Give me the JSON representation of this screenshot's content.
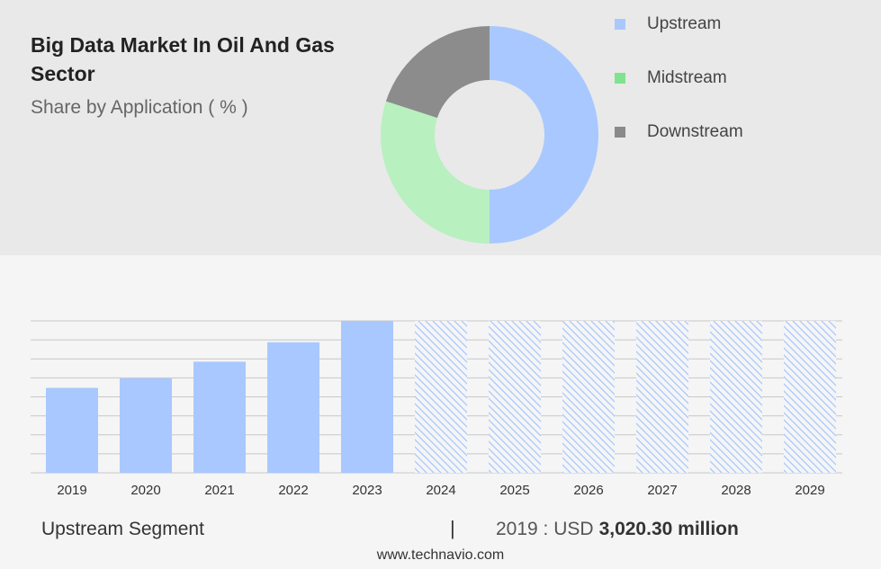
{
  "header": {
    "title": "Big Data Market In Oil And Gas Sector",
    "subtitle": "Share by Application ( % )"
  },
  "legend": [
    {
      "label": "Upstream",
      "color": "#a9c8ff"
    },
    {
      "label": "Midstream",
      "color": "#7fe38f"
    },
    {
      "label": "Downstream",
      "color": "#8a8a8a"
    }
  ],
  "chart_data": [
    {
      "type": "pie",
      "variant": "donut",
      "title": "Share by Application ( % )",
      "labels": [
        "Upstream",
        "Midstream",
        "Downstream"
      ],
      "values": [
        50,
        30,
        20
      ],
      "colors": [
        "#a9c8ff",
        "#b8f0c0",
        "#8c8c8c"
      ],
      "legend_position": "right"
    },
    {
      "type": "bar",
      "categories": [
        "2019",
        "2020",
        "2021",
        "2022",
        "2023",
        "2024",
        "2025",
        "2026",
        "2027",
        "2028",
        "2029"
      ],
      "values": [
        3020.3,
        3360,
        3950,
        4640,
        5400,
        null,
        null,
        null,
        null,
        null,
        null
      ],
      "forecast_categories": [
        "2024",
        "2025",
        "2026",
        "2027",
        "2028",
        "2029"
      ],
      "ylim": [
        0,
        5400
      ],
      "grid": true,
      "bar_color": "#a9c8ff"
    }
  ],
  "footer": {
    "segment": "Upstream Segment",
    "separator": "|",
    "year_label": "2019 : USD",
    "value": "3,020.30 million",
    "source": "www.technavio.com"
  }
}
